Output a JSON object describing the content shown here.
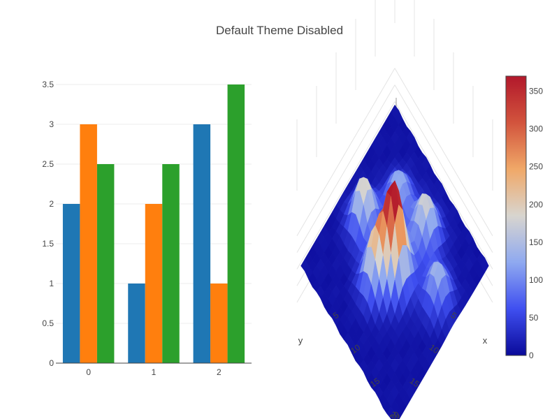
{
  "title": "Default Theme Disabled",
  "colors": {
    "bar_series": [
      "#1f77b4",
      "#ff7f0e",
      "#2ca02c"
    ],
    "colorscale": [
      "#0a0a9a",
      "#3f4ff0",
      "#8fa9f0",
      "#d8d5cf",
      "#f0a868",
      "#d2543d",
      "#b2182b"
    ]
  },
  "chart_data": [
    {
      "type": "bar",
      "categories": [
        "0",
        "1",
        "2"
      ],
      "series": [
        {
          "values": [
            2,
            1,
            3
          ]
        },
        {
          "values": [
            3,
            2,
            1
          ]
        },
        {
          "values": [
            2.5,
            2.5,
            3.5
          ]
        }
      ],
      "yticks": [
        "0",
        "0.5",
        "1",
        "1.5",
        "2",
        "2.5",
        "3",
        "3.5"
      ],
      "ylim": [
        0,
        3.5
      ],
      "grid": true
    },
    {
      "type": "surface",
      "xlabel": "x",
      "ylabel": "y",
      "xticks": [
        "5",
        "10",
        "15",
        "20"
      ],
      "yticks": [
        "5",
        "10",
        "15",
        "20"
      ],
      "colorbar_ticks": [
        "0",
        "50",
        "100",
        "150",
        "200",
        "250",
        "300",
        "350"
      ],
      "zlim": [
        0,
        370
      ],
      "grid_size": [
        25,
        25
      ],
      "peaks": [
        {
          "x": 13,
          "y": 13,
          "height": 370
        },
        {
          "x": 11,
          "y": 16,
          "height": 210
        },
        {
          "x": 5,
          "y": 13,
          "height": 200
        },
        {
          "x": 14,
          "y": 6,
          "height": 170
        },
        {
          "x": 20,
          "y": 9,
          "height": 140
        },
        {
          "x": 8,
          "y": 7,
          "height": 120
        }
      ]
    }
  ]
}
